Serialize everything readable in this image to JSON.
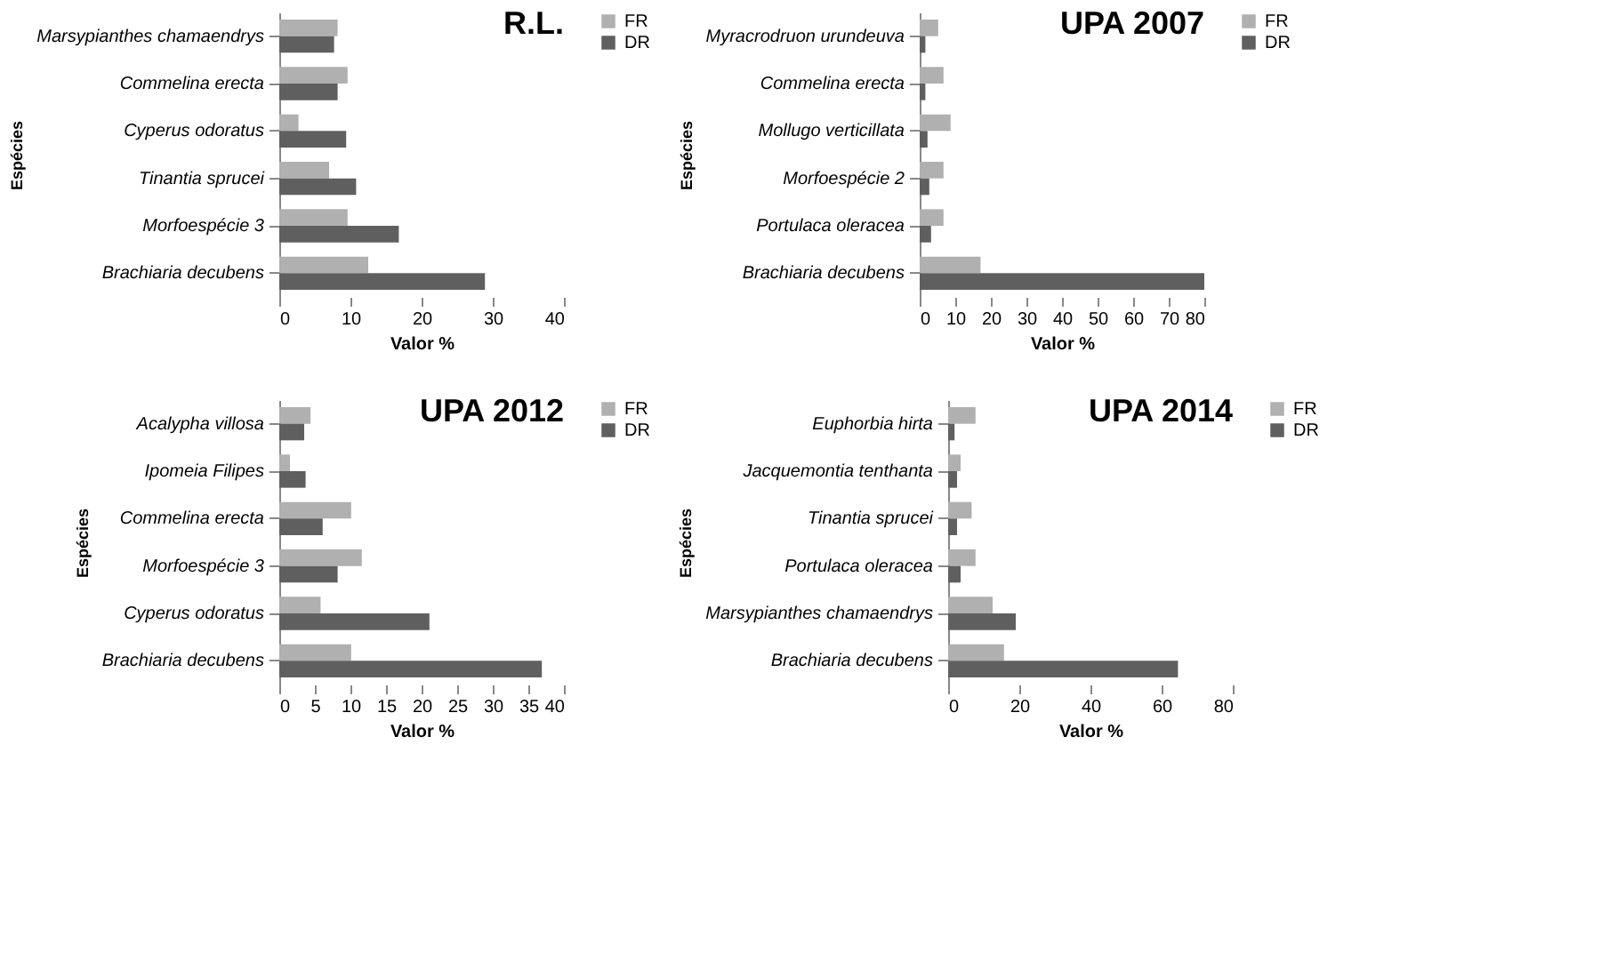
{
  "chart_data": [
    {
      "type": "bar",
      "orientation": "horizontal",
      "title": "R.L.",
      "xlabel": "Valor %",
      "ylabel": "Espécies",
      "legend": "right",
      "grid": false,
      "categories": [
        "Marsypianthes chamaendrys",
        "Commelina erecta",
        "Cyperus odoratus",
        "Tinantia sprucei",
        "Morfoespécie 3",
        "Brachiaria decubens"
      ],
      "series": [
        {
          "name": "FR",
          "color": "#b0b0b0",
          "values": [
            8.2,
            9.6,
            2.7,
            7.0,
            9.6,
            12.5
          ]
        },
        {
          "name": "DR",
          "color": "#5f5f5f",
          "values": [
            7.7,
            8.2,
            9.4,
            10.8,
            16.8,
            28.9
          ]
        }
      ],
      "xlim": [
        0,
        40
      ],
      "xticks": [
        0,
        10,
        20,
        30,
        40
      ]
    },
    {
      "type": "bar",
      "orientation": "horizontal",
      "title": "UPA 2007",
      "xlabel": "Valor %",
      "ylabel": "Espécies",
      "legend": "right",
      "grid": false,
      "categories": [
        "Myracrodruon urundeuva",
        "Commelina erecta",
        "Mollugo verticillata",
        "Morfoespécie 2",
        "Portulaca oleracea",
        "Brachiaria decubens"
      ],
      "series": [
        {
          "name": "FR",
          "color": "#b0b0b0",
          "values": [
            5.2,
            6.7,
            8.7,
            6.7,
            6.7,
            17.1
          ]
        },
        {
          "name": "DR",
          "color": "#5f5f5f",
          "values": [
            1.6,
            1.6,
            2.2,
            2.7,
            3.2,
            80
          ]
        }
      ],
      "xlim": [
        0,
        80
      ],
      "xticks": [
        0,
        10,
        20,
        30,
        40,
        50,
        60,
        70,
        80
      ]
    },
    {
      "type": "bar",
      "orientation": "horizontal",
      "title": "UPA 2012",
      "xlabel": "Valor %",
      "ylabel": "Espécies",
      "legend": "right",
      "grid": false,
      "categories": [
        "Acalypha villosa",
        "Ipomeia Filipes",
        "Commelina erecta",
        "Morfoespécie 3",
        "Cyperus odoratus",
        "Brachiaria decubens"
      ],
      "series": [
        {
          "name": "FR",
          "color": "#b0b0b0",
          "values": [
            4.4,
            1.5,
            10.1,
            11.6,
            5.8,
            10.1
          ]
        },
        {
          "name": "DR",
          "color": "#5f5f5f",
          "values": [
            3.5,
            3.7,
            6.1,
            8.2,
            21.1,
            36.9
          ]
        }
      ],
      "xlim": [
        0,
        40
      ],
      "xticks": [
        0,
        5,
        10,
        15,
        20,
        25,
        30,
        35,
        40
      ]
    },
    {
      "type": "bar",
      "orientation": "horizontal",
      "title": "UPA 2014",
      "xlabel": "Valor %",
      "ylabel": "Espécies",
      "legend": "right",
      "grid": false,
      "categories": [
        "Euphorbia hirta",
        "Jacquemontia tenthanta",
        "Tinantia sprucei",
        "Portulaca oleracea",
        "Marsypianthes chamaendrys",
        "Brachiaria decubens"
      ],
      "series": [
        {
          "name": "FR",
          "color": "#b0b0b0",
          "values": [
            7.7,
            3.5,
            6.6,
            7.7,
            12.5,
            15.7
          ]
        },
        {
          "name": "DR",
          "color": "#5f5f5f",
          "values": [
            1.8,
            2.5,
            2.5,
            3.5,
            19.0,
            64.6
          ]
        }
      ],
      "xlim": [
        0,
        80
      ],
      "xticks": [
        0,
        20,
        40,
        60,
        80
      ]
    }
  ]
}
